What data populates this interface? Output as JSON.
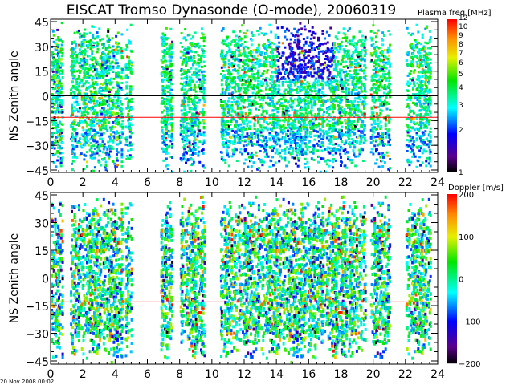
{
  "title": "EISCAT Tromso Dynasonde (O-mode),  20060319",
  "footer_timestamp": "20 Nov 2008 00:02",
  "chart_data": [
    {
      "type": "heatmap",
      "name": "plasma-frequency",
      "ylabel": "NS Zenith angle",
      "xlabel": "",
      "xlim": [
        0,
        24
      ],
      "ylim": [
        -45,
        45
      ],
      "xticks": [
        "0",
        "2",
        "4",
        "6",
        "8",
        "10",
        "12",
        "14",
        "16",
        "18",
        "20",
        "22",
        "24"
      ],
      "yticks": [
        "45",
        "30",
        "15",
        "0",
        "-15",
        "-30",
        "-45"
      ],
      "reference_lines": [
        {
          "y": 0,
          "color": "#000000"
        },
        {
          "y": -13,
          "color": "#ff0000"
        }
      ],
      "colorbar": {
        "label": "Plasma freq [MHz]",
        "scale": "log",
        "range": [
          1,
          12
        ],
        "ticks": [
          "1",
          "2",
          "3",
          "4",
          "5",
          "6",
          "7",
          "8",
          "9",
          "10",
          "12"
        ]
      },
      "observation_segments_ut": [
        [
          0,
          0.7
        ],
        [
          1.2,
          4.4
        ],
        [
          4.6,
          5.0
        ],
        [
          6.8,
          7.5
        ],
        [
          8.0,
          9.5
        ],
        [
          10.5,
          19.5
        ],
        [
          19.8,
          21.0
        ],
        [
          22.0,
          23.5
        ]
      ]
    },
    {
      "type": "heatmap",
      "name": "doppler",
      "ylabel": "NS Zenith angle",
      "xlabel": "",
      "xlim": [
        0,
        24
      ],
      "ylim": [
        -45,
        45
      ],
      "xticks": [
        "0",
        "2",
        "4",
        "6",
        "8",
        "10",
        "12",
        "14",
        "16",
        "18",
        "20",
        "22",
        "24"
      ],
      "yticks": [
        "45",
        "30",
        "15",
        "0",
        "-15",
        "-30",
        "-45"
      ],
      "reference_lines": [
        {
          "y": 0,
          "color": "#000000"
        },
        {
          "y": -13,
          "color": "#ff0000"
        }
      ],
      "colorbar": {
        "label": "Doppler [m/s]",
        "scale": "linear",
        "range": [
          -200,
          200
        ],
        "ticks": [
          "200",
          "100",
          "0",
          "-100",
          "-200"
        ]
      },
      "observation_segments_ut": [
        [
          0,
          0.7
        ],
        [
          1.2,
          4.4
        ],
        [
          4.6,
          5.0
        ],
        [
          6.8,
          7.5
        ],
        [
          8.0,
          9.5
        ],
        [
          10.5,
          19.5
        ],
        [
          19.8,
          21.0
        ],
        [
          22.0,
          23.5
        ]
      ]
    }
  ]
}
